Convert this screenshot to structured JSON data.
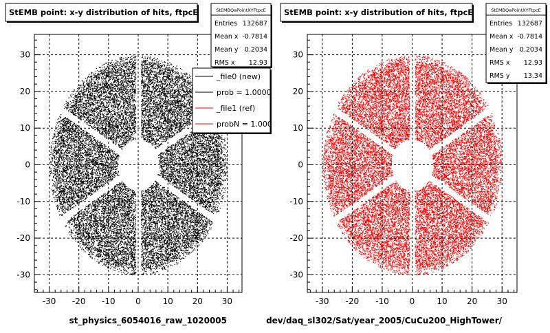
{
  "chart_data": [
    {
      "type": "scatter",
      "title": "StEMB point: x-y distribution of hits, ftpcE",
      "xlabel": "st_physics_6054016_raw_1020005",
      "ylabel": "",
      "xlim": [
        -35,
        35
      ],
      "ylim": [
        -35,
        35
      ],
      "xticks": [
        -30,
        -20,
        -10,
        0,
        10,
        20,
        30
      ],
      "yticks": [
        30,
        20,
        10,
        0,
        -10,
        -20,
        -30
      ],
      "grid": true,
      "point_color": "#000000",
      "distribution": {
        "shape": "annulus",
        "inner_radius": 7,
        "outer_radius": 30,
        "sector_gaps": 6
      },
      "stats": {
        "name": "StEMBQaPointXYFtpcE",
        "rows": [
          {
            "label": "Entries",
            "value": "132687"
          },
          {
            "label": "Mean x",
            "value": "-0.7814"
          },
          {
            "label": "Mean y",
            "value": "0.2034"
          },
          {
            "label": "RMS x",
            "value": "12.93"
          }
        ]
      },
      "legend": {
        "placement": "top-right",
        "entries": [
          {
            "label": "_file0 (new)",
            "color": "#000000"
          },
          {
            "label": "prob = 1.000000",
            "color": "#000000"
          },
          {
            "label": "_file1 (ref)",
            "color": "#ff0000"
          },
          {
            "label": "probN = 1.000000",
            "color": "#ff0000"
          }
        ]
      }
    },
    {
      "type": "scatter",
      "title": "StEMB point: x-y distribution of hits, ftpcE",
      "xlabel": "dev/daq_sl302/Sat/year_2005/CuCu200_HighTower/",
      "ylabel": "",
      "xlim": [
        -35,
        35
      ],
      "ylim": [
        -35,
        35
      ],
      "xticks": [
        -30,
        -20,
        -10,
        0,
        10,
        20,
        30
      ],
      "yticks": [
        30,
        20,
        10,
        0,
        -10,
        -20,
        -30
      ],
      "grid": true,
      "point_color": "#ff0000",
      "distribution": {
        "shape": "annulus",
        "inner_radius": 7,
        "outer_radius": 30,
        "sector_gaps": 6
      },
      "stats": {
        "name": "StEMBQaPointXYFtpcE",
        "rows": [
          {
            "label": "Entries",
            "value": "132687"
          },
          {
            "label": "Mean x",
            "value": "-0.7814"
          },
          {
            "label": "Mean y",
            "value": "0.2034"
          },
          {
            "label": "RMS x",
            "value": "12.93"
          },
          {
            "label": "RMS y",
            "value": "13.34"
          }
        ]
      }
    }
  ]
}
